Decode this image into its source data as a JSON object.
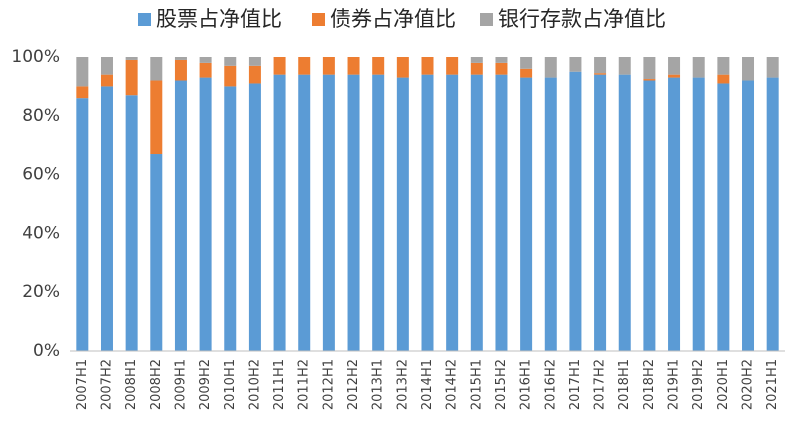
{
  "chart_data": {
    "type": "bar",
    "stacked": true,
    "categories": [
      "2007H1",
      "2007H2",
      "2008H1",
      "2008H2",
      "2009H1",
      "2009H2",
      "2010H1",
      "2010H2",
      "2011H1",
      "2011H2",
      "2012H1",
      "2012H2",
      "2013H1",
      "2013H2",
      "2014H1",
      "2014H2",
      "2015H1",
      "2015H2",
      "2016H1",
      "2016H2",
      "2017H1",
      "2017H2",
      "2018H1",
      "2018H2",
      "2019H1",
      "2019H2",
      "2020H1",
      "2020H2",
      "2021H1"
    ],
    "series": [
      {
        "name": "股票占净值比",
        "color": "#5b9bd5",
        "values": [
          86,
          90,
          87,
          67,
          92,
          93,
          90,
          91,
          94,
          94,
          94,
          94,
          94,
          93,
          94,
          94,
          94,
          94,
          93,
          93,
          95,
          94,
          94,
          92,
          93,
          93,
          91,
          92,
          93
        ]
      },
      {
        "name": "债券占净值比",
        "color": "#ed7d31",
        "values": [
          4,
          4,
          12,
          25,
          7,
          5,
          7,
          6,
          6,
          6,
          6,
          6,
          6,
          7,
          6,
          6,
          4,
          4,
          3,
          0,
          0,
          0.5,
          0,
          0.5,
          1,
          0,
          3,
          0,
          0
        ]
      },
      {
        "name": "银行存款占净值比",
        "color": "#a5a5a5",
        "values": [
          10,
          6,
          1,
          8,
          1,
          2,
          3,
          3,
          0,
          0,
          0,
          0,
          0,
          0,
          0,
          0,
          2,
          2,
          4,
          7,
          5,
          5.5,
          6,
          7.5,
          6,
          7,
          6,
          8,
          7
        ]
      }
    ],
    "ylim": [
      0,
      100
    ],
    "yticks": [
      {
        "value": 0,
        "label": "0%"
      },
      {
        "value": 20,
        "label": "20%"
      },
      {
        "value": 40,
        "label": "40%"
      },
      {
        "value": 60,
        "label": "60%"
      },
      {
        "value": 80,
        "label": "80%"
      },
      {
        "value": 100,
        "label": "100%"
      }
    ],
    "legend": "top",
    "grid": false
  }
}
